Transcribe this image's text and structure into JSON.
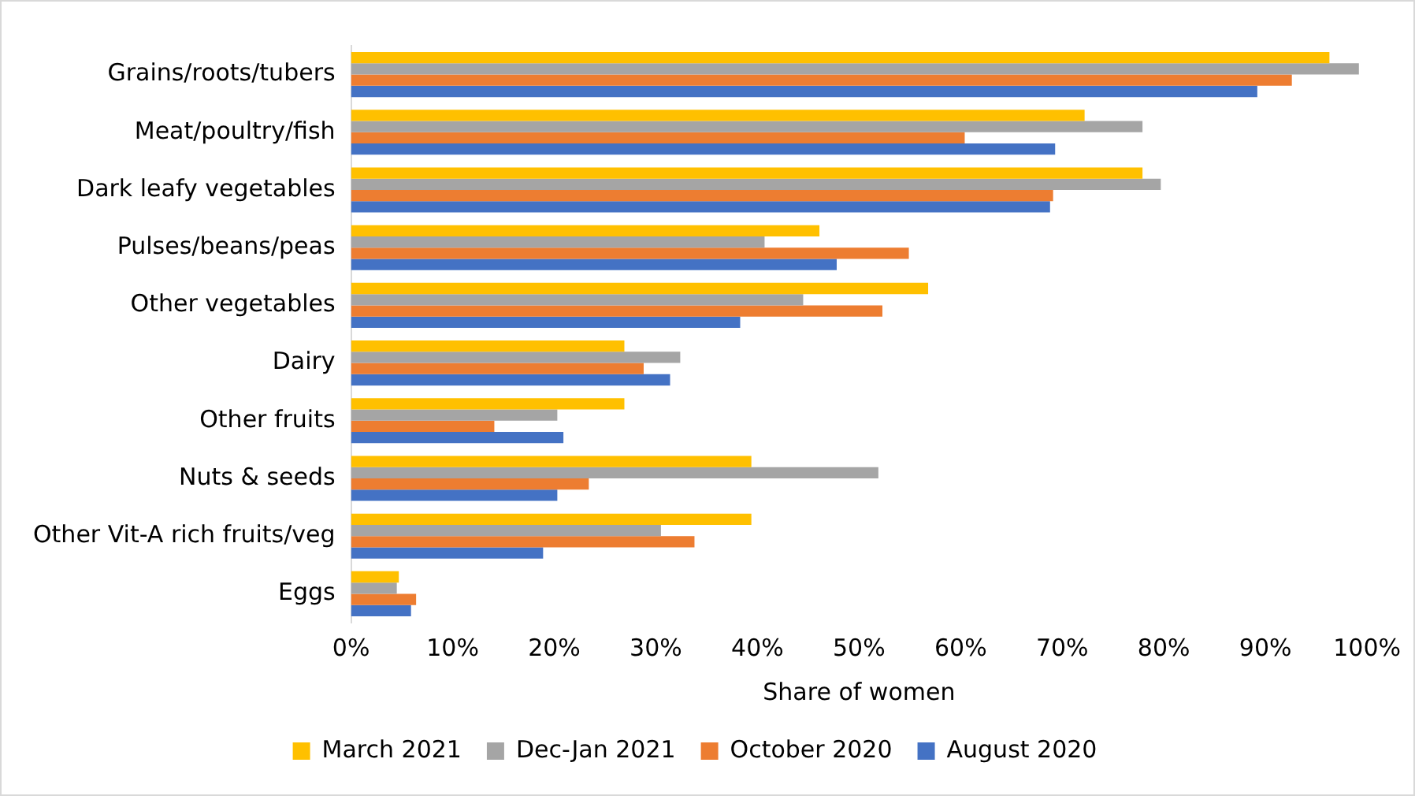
{
  "chart_data": {
    "type": "bar",
    "orientation": "horizontal",
    "xlabel": "Share of women",
    "categories": [
      "Grains/roots/tubers",
      "Meat/poultry/fish",
      "Dark leafy vegetables",
      "Pulses/beans/peas",
      "Other vegetables",
      "Dairy",
      "Other fruits",
      "Nuts & seeds",
      "Other Vit-A rich fruits/veg",
      "Eggs"
    ],
    "series": [
      {
        "name": "March 2021",
        "color": "#ffc000",
        "values": [
          96.3,
          72.2,
          77.9,
          46.1,
          56.8,
          26.9,
          26.9,
          39.4,
          39.4,
          4.7
        ]
      },
      {
        "name": "Dec-Jan 2021",
        "color": "#a5a5a5",
        "values": [
          99.2,
          77.9,
          79.7,
          40.7,
          44.5,
          32.4,
          20.3,
          51.9,
          30.5,
          4.5
        ]
      },
      {
        "name": "October 2020",
        "color": "#ed7d31",
        "values": [
          92.6,
          60.4,
          69.1,
          54.9,
          52.3,
          28.8,
          14.1,
          23.4,
          33.8,
          6.4
        ]
      },
      {
        "name": "August 2020",
        "color": "#4472c4",
        "values": [
          89.2,
          69.3,
          68.8,
          47.8,
          38.3,
          31.4,
          20.9,
          20.3,
          18.9,
          5.9
        ]
      }
    ],
    "xlim": [
      0,
      100
    ],
    "xticks": [
      {
        "value": 0,
        "label": "0%"
      },
      {
        "value": 10,
        "label": "10%"
      },
      {
        "value": 20,
        "label": "20%"
      },
      {
        "value": 30,
        "label": "30%"
      },
      {
        "value": 40,
        "label": "40%"
      },
      {
        "value": 50,
        "label": "50%"
      },
      {
        "value": 60,
        "label": "60%"
      },
      {
        "value": 70,
        "label": "70%"
      },
      {
        "value": 80,
        "label": "80%"
      },
      {
        "value": 90,
        "label": "90%"
      },
      {
        "value": 100,
        "label": "100%"
      }
    ],
    "grid": false,
    "legend": "bottom"
  }
}
